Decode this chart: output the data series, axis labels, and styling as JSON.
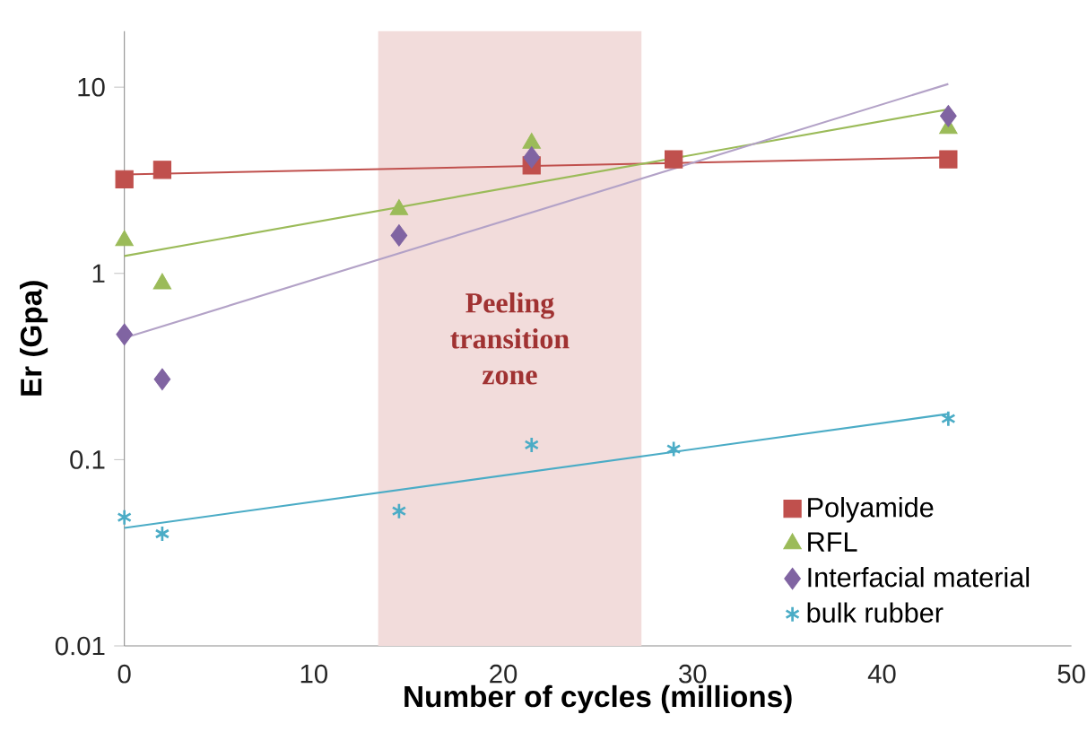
{
  "chart_data": {
    "type": "scatter",
    "xlabel": "Number of cycles (millions)",
    "ylabel": "Er (Gpa)",
    "log": "y",
    "xlim": [
      0,
      50
    ],
    "xticks": [
      0,
      10,
      20,
      30,
      40,
      50
    ],
    "ylim": [
      0.01,
      20
    ],
    "yticks": [
      0.01,
      0.1,
      1,
      10
    ],
    "grid": false,
    "legend": "bottom right",
    "bands": [
      {
        "axis": "x",
        "from": 13.4,
        "to": 27.3,
        "label": "Peeling transition zone",
        "color": "#f2dcdb"
      }
    ],
    "series": [
      {
        "name": "Polyamide",
        "marker": "square",
        "color": "#c0504d",
        "x": [
          0,
          2,
          21.5,
          29,
          43.5
        ],
        "values": [
          3.2,
          3.6,
          3.8,
          4.1,
          4.1
        ]
      },
      {
        "name": "RFL",
        "marker": "triangle",
        "color": "#9bbb59",
        "x": [
          0,
          2,
          14.5,
          21.5,
          43.5
        ],
        "values": [
          1.5,
          0.88,
          2.2,
          5.0,
          6.0
        ]
      },
      {
        "name": "Interfacial material",
        "marker": "diamond",
        "color": "#8064a2",
        "x": [
          0,
          2,
          14.5,
          21.5,
          43.5
        ],
        "values": [
          0.47,
          0.27,
          1.6,
          4.2,
          7.0
        ]
      },
      {
        "name": "bulk rubber",
        "marker": "cross",
        "color": "#4bacc6",
        "x": [
          0,
          2,
          14.5,
          21.5,
          29,
          43.5
        ],
        "values": [
          0.049,
          0.04,
          0.053,
          0.12,
          0.114,
          0.166
        ]
      },
      {
        "type": "line",
        "color": "#c0504d",
        "x": [
          0,
          43.5
        ],
        "values": [
          3.4,
          4.2
        ]
      },
      {
        "type": "line",
        "color": "#9bbb59",
        "x": [
          0,
          43.5
        ],
        "values": [
          1.24,
          7.6
        ]
      },
      {
        "type": "line",
        "color": "#b3a2c7",
        "x": [
          0,
          43.5
        ],
        "values": [
          0.45,
          10.4
        ]
      },
      {
        "type": "line",
        "color": "#4bacc6",
        "x": [
          0,
          43.5
        ],
        "values": [
          0.043,
          0.176
        ]
      }
    ]
  }
}
